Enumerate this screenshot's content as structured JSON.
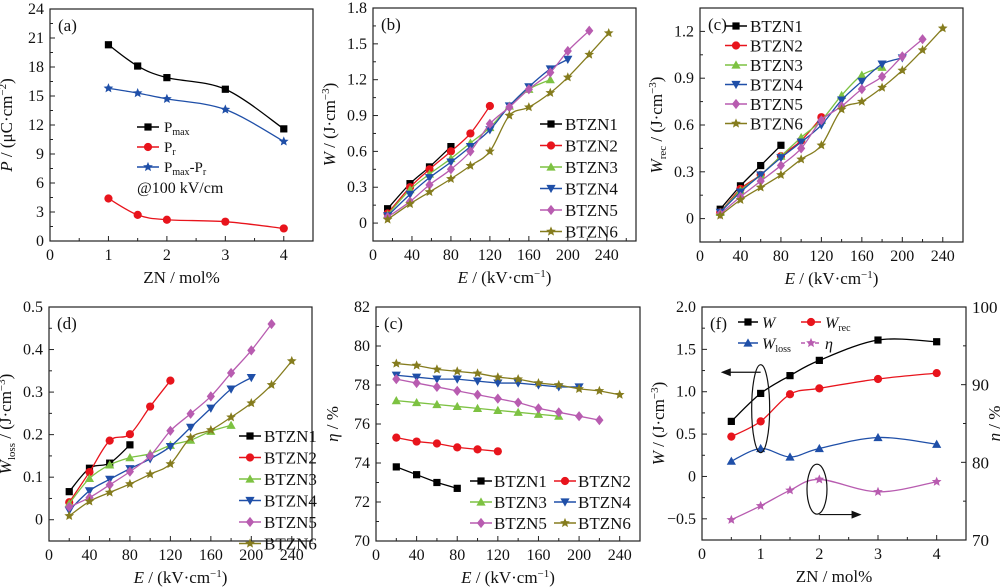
{
  "chart_data": [
    {
      "id": "a",
      "panel_label": "(a)",
      "type": "line",
      "xlabel": "ZN / mol%",
      "ylabel": "P / (μC·cm⁻²)",
      "ylabel_italic": "P",
      "ylabel_rest": " / (μC·cm",
      "ylabel_sup": "−2",
      "ylabel_end": ")",
      "xlim": [
        0,
        4.5
      ],
      "ylim": [
        0,
        24
      ],
      "xticks": [
        0,
        1,
        2,
        3,
        4
      ],
      "yticks": [
        0,
        3,
        6,
        9,
        12,
        15,
        18,
        21,
        24
      ],
      "annotation": "@100 kV/cm",
      "legend_position": "center-left",
      "series": [
        {
          "name": "Pmax",
          "label_main": "P",
          "label_sub": "max",
          "label_tail": "",
          "color": "#000000",
          "marker": "square",
          "x": [
            1,
            1.5,
            2,
            3,
            4
          ],
          "y": [
            20.3,
            18.1,
            16.9,
            15.7,
            11.6
          ]
        },
        {
          "name": "Pr",
          "label_main": "P",
          "label_sub": "r",
          "label_tail": "",
          "color": "#e8141c",
          "marker": "circle",
          "x": [
            1,
            1.5,
            2,
            3,
            4
          ],
          "y": [
            4.4,
            2.7,
            2.2,
            2.0,
            1.3
          ]
        },
        {
          "name": "Pmax-Pr",
          "label_main": "P",
          "label_sub": "max",
          "label_tail": "-P",
          "label_tail_sub": "r",
          "color": "#1f4fa8",
          "marker": "star",
          "x": [
            1,
            1.5,
            2,
            3,
            4
          ],
          "y": [
            15.8,
            15.3,
            14.7,
            13.6,
            10.3
          ]
        }
      ]
    },
    {
      "id": "b",
      "panel_label": "(b)",
      "type": "line",
      "xlabel": "E / (kV·cm⁻¹)",
      "ylabel": "W / (J·cm⁻³)",
      "xlim": [
        0,
        270
      ],
      "ylim": [
        -0.15,
        1.8
      ],
      "xticks": [
        0,
        40,
        80,
        120,
        160,
        200,
        240
      ],
      "yticks": [
        0,
        0.3,
        0.6,
        0.9,
        1.2,
        1.5,
        1.8
      ],
      "legend_position": "right",
      "series": [
        {
          "name": "BTZN1",
          "color": "#000000",
          "marker": "square",
          "x": [
            15,
            38,
            58,
            80
          ],
          "y": [
            0.12,
            0.33,
            0.47,
            0.64
          ]
        },
        {
          "name": "BTZN2",
          "color": "#e8141c",
          "marker": "circle",
          "x": [
            15,
            38,
            58,
            80,
            100,
            120
          ],
          "y": [
            0.08,
            0.3,
            0.45,
            0.6,
            0.75,
            0.98
          ]
        },
        {
          "name": "BTZN3",
          "color": "#7dc242",
          "marker": "triangle-up",
          "x": [
            15,
            38,
            58,
            80,
            100,
            120,
            140,
            160,
            182
          ],
          "y": [
            0.07,
            0.28,
            0.41,
            0.54,
            0.67,
            0.8,
            0.98,
            1.12,
            1.2
          ]
        },
        {
          "name": "BTZN4",
          "color": "#1f4fa8",
          "marker": "triangle-down",
          "x": [
            15,
            38,
            58,
            80,
            100,
            120,
            140,
            160,
            182,
            200
          ],
          "y": [
            0.06,
            0.24,
            0.38,
            0.51,
            0.64,
            0.78,
            0.98,
            1.14,
            1.29,
            1.37
          ]
        },
        {
          "name": "BTZN5",
          "color": "#b85cb0",
          "marker": "diamond",
          "x": [
            15,
            38,
            58,
            80,
            100,
            120,
            140,
            160,
            182,
            200,
            222
          ],
          "y": [
            0.05,
            0.18,
            0.32,
            0.45,
            0.6,
            0.83,
            0.97,
            1.12,
            1.26,
            1.44,
            1.61
          ]
        },
        {
          "name": "BTZN6",
          "color": "#857c1e",
          "marker": "star",
          "x": [
            15,
            38,
            58,
            80,
            100,
            120,
            140,
            160,
            182,
            200,
            222,
            242
          ],
          "y": [
            0.03,
            0.16,
            0.26,
            0.37,
            0.48,
            0.6,
            0.9,
            0.97,
            1.09,
            1.22,
            1.41,
            1.59
          ]
        }
      ]
    },
    {
      "id": "c",
      "panel_label": "(c)",
      "type": "line",
      "xlabel": "E / (kV·cm⁻¹)",
      "ylabel": "Wrec / (J·cm⁻³)",
      "xlim": [
        0,
        260
      ],
      "ylim": [
        -0.15,
        1.35
      ],
      "xticks": [
        0,
        40,
        80,
        120,
        160,
        200,
        240
      ],
      "yticks": [
        0,
        0.3,
        0.6,
        0.9,
        1.2
      ],
      "legend_position": "top-left",
      "series": [
        {
          "name": "BTZN1",
          "color": "#000000",
          "marker": "square",
          "x": [
            20,
            40,
            60,
            80
          ],
          "y": [
            0.06,
            0.21,
            0.34,
            0.47
          ]
        },
        {
          "name": "BTZN2",
          "color": "#e8141c",
          "marker": "circle",
          "x": [
            20,
            40,
            60,
            80,
            100,
            120
          ],
          "y": [
            0.04,
            0.19,
            0.28,
            0.4,
            0.5,
            0.65
          ]
        },
        {
          "name": "BTZN3",
          "color": "#7dc242",
          "marker": "triangle-up",
          "x": [
            20,
            40,
            60,
            80,
            100,
            120,
            140,
            160,
            180
          ],
          "y": [
            0.04,
            0.18,
            0.28,
            0.4,
            0.52,
            0.63,
            0.79,
            0.92,
            0.97
          ]
        },
        {
          "name": "BTZN4",
          "color": "#1f4fa8",
          "marker": "triangle-down",
          "x": [
            20,
            40,
            60,
            80,
            100,
            120,
            140,
            160,
            180,
            200
          ],
          "y": [
            0.04,
            0.17,
            0.28,
            0.39,
            0.49,
            0.6,
            0.76,
            0.88,
            0.99,
            1.03
          ]
        },
        {
          "name": "BTZN5",
          "color": "#b85cb0",
          "marker": "diamond",
          "x": [
            20,
            40,
            60,
            80,
            100,
            120,
            140,
            160,
            180,
            200,
            220
          ],
          "y": [
            0.03,
            0.14,
            0.24,
            0.34,
            0.45,
            0.63,
            0.72,
            0.83,
            0.91,
            1.04,
            1.15
          ]
        },
        {
          "name": "BTZN6",
          "color": "#857c1e",
          "marker": "star",
          "x": [
            20,
            40,
            60,
            80,
            100,
            120,
            140,
            160,
            180,
            200,
            220,
            240
          ],
          "y": [
            0.02,
            0.12,
            0.2,
            0.28,
            0.38,
            0.47,
            0.7,
            0.75,
            0.84,
            0.95,
            1.08,
            1.22
          ]
        }
      ]
    },
    {
      "id": "d",
      "panel_label": "(d)",
      "type": "line",
      "xlabel": "E / (kV·cm⁻¹)",
      "ylabel": "Wloss / (J·cm⁻³)",
      "xlim": [
        0,
        260
      ],
      "ylim": [
        -0.05,
        0.5
      ],
      "xticks": [
        0,
        40,
        80,
        120,
        160,
        200,
        240
      ],
      "yticks": [
        0,
        0.1,
        0.2,
        0.3,
        0.4,
        0.5
      ],
      "legend_position": "right",
      "series": [
        {
          "name": "BTZN1",
          "color": "#000000",
          "marker": "square",
          "x": [
            20,
            40,
            60,
            80
          ],
          "y": [
            0.066,
            0.121,
            0.133,
            0.176
          ]
        },
        {
          "name": "BTZN2",
          "color": "#e8141c",
          "marker": "circle",
          "x": [
            20,
            40,
            60,
            80,
            100,
            120
          ],
          "y": [
            0.041,
            0.112,
            0.186,
            0.201,
            0.266,
            0.327
          ]
        },
        {
          "name": "BTZN3",
          "color": "#7dc242",
          "marker": "triangle-up",
          "x": [
            20,
            40,
            60,
            80,
            100,
            120,
            140,
            160,
            180
          ],
          "y": [
            0.038,
            0.097,
            0.129,
            0.146,
            0.155,
            0.175,
            0.187,
            0.208,
            0.222
          ]
        },
        {
          "name": "BTZN4",
          "color": "#1f4fa8",
          "marker": "triangle-down",
          "x": [
            20,
            40,
            60,
            80,
            100,
            120,
            140,
            160,
            180,
            200
          ],
          "y": [
            0.022,
            0.068,
            0.095,
            0.12,
            0.143,
            0.172,
            0.217,
            0.262,
            0.307,
            0.334
          ]
        },
        {
          "name": "BTZN5",
          "color": "#b85cb0",
          "marker": "diamond",
          "x": [
            20,
            40,
            60,
            80,
            100,
            120,
            140,
            160,
            180,
            200,
            220
          ],
          "y": [
            0.03,
            0.052,
            0.082,
            0.113,
            0.15,
            0.209,
            0.249,
            0.29,
            0.345,
            0.398,
            0.46
          ]
        },
        {
          "name": "BTZN6",
          "color": "#857c1e",
          "marker": "star",
          "x": [
            20,
            40,
            60,
            80,
            100,
            120,
            140,
            160,
            180,
            200,
            220,
            240
          ],
          "y": [
            0.009,
            0.043,
            0.064,
            0.084,
            0.107,
            0.131,
            0.193,
            0.211,
            0.241,
            0.274,
            0.317,
            0.373
          ]
        }
      ]
    },
    {
      "id": "e",
      "panel_label": "(c)",
      "type": "line",
      "xlabel": "E / (kV·cm⁻¹)",
      "ylabel": "η / %",
      "xlim": [
        0,
        260
      ],
      "ylim": [
        70,
        82
      ],
      "xticks": [
        0,
        40,
        80,
        120,
        160,
        200,
        240
      ],
      "yticks": [
        70,
        72,
        74,
        76,
        78,
        80,
        82
      ],
      "legend_position": "bottom-right",
      "legend_columns": 2,
      "series": [
        {
          "name": "BTZN1",
          "color": "#000000",
          "marker": "square",
          "x": [
            20,
            40,
            60,
            80
          ],
          "y": [
            73.8,
            73.4,
            73.0,
            72.7
          ]
        },
        {
          "name": "BTZN2",
          "color": "#e8141c",
          "marker": "circle",
          "x": [
            20,
            40,
            60,
            80,
            100,
            120
          ],
          "y": [
            75.3,
            75.1,
            75.0,
            74.8,
            74.7,
            74.6
          ]
        },
        {
          "name": "BTZN3",
          "color": "#7dc242",
          "marker": "triangle-up",
          "x": [
            20,
            40,
            60,
            80,
            100,
            120,
            140,
            160,
            180
          ],
          "y": [
            77.2,
            77.1,
            77.0,
            76.9,
            76.8,
            76.7,
            76.6,
            76.5,
            76.4
          ]
        },
        {
          "name": "BTZN4",
          "color": "#1f4fa8",
          "marker": "triangle-down",
          "x": [
            20,
            40,
            60,
            80,
            100,
            120,
            140,
            160,
            180,
            200
          ],
          "y": [
            78.5,
            78.4,
            78.3,
            78.3,
            78.2,
            78.1,
            78.1,
            78.0,
            77.9,
            77.9
          ]
        },
        {
          "name": "BTZN5",
          "color": "#b85cb0",
          "marker": "diamond",
          "x": [
            20,
            40,
            60,
            80,
            100,
            120,
            140,
            160,
            180,
            200,
            220
          ],
          "y": [
            78.3,
            78.1,
            77.9,
            77.7,
            77.5,
            77.3,
            77.1,
            76.8,
            76.6,
            76.4,
            76.2
          ]
        },
        {
          "name": "BTZN6",
          "color": "#857c1e",
          "marker": "star",
          "x": [
            20,
            40,
            60,
            80,
            100,
            120,
            140,
            160,
            180,
            200,
            220,
            240
          ],
          "y": [
            79.1,
            79.0,
            78.8,
            78.7,
            78.6,
            78.4,
            78.3,
            78.1,
            78.0,
            77.8,
            77.7,
            77.5
          ]
        }
      ]
    },
    {
      "id": "f",
      "panel_label": "(f)",
      "type": "line",
      "xlabel": "ZN / mol%",
      "ylabel": "W / (J·cm⁻³)",
      "y2label": "η / %",
      "xlim": [
        0,
        4.5
      ],
      "ylim": [
        -0.75,
        2.0
      ],
      "y2lim": [
        70,
        100
      ],
      "xticks": [
        0,
        1,
        2,
        3,
        4
      ],
      "yticks": [
        -0.5,
        0,
        0.5,
        1.0,
        1.5,
        2.0
      ],
      "ytick_labels": [
        "−0.5",
        "0",
        "0.5",
        "1.0",
        "1.5",
        "2.0"
      ],
      "y2ticks": [
        70,
        80,
        90,
        100
      ],
      "legend_position": "top-left",
      "legend_columns": 2,
      "series": [
        {
          "name": "W",
          "label_main": "W",
          "label_sub": "",
          "color": "#000000",
          "marker": "square",
          "axis": "left",
          "x": [
            0.5,
            1,
            1.5,
            2,
            3,
            4
          ],
          "y": [
            0.65,
            0.98,
            1.19,
            1.37,
            1.61,
            1.59
          ]
        },
        {
          "name": "Wrec",
          "label_main": "W",
          "label_sub": "rec",
          "color": "#e8141c",
          "marker": "circle",
          "axis": "left",
          "x": [
            0.5,
            1,
            1.5,
            2,
            3,
            4
          ],
          "y": [
            0.47,
            0.65,
            0.97,
            1.04,
            1.15,
            1.22
          ]
        },
        {
          "name": "Wloss",
          "label_main": "W",
          "label_sub": "loss",
          "color": "#1f4fa8",
          "marker": "triangle-up",
          "axis": "left",
          "x": [
            0.5,
            1,
            1.5,
            2,
            3,
            4
          ],
          "y": [
            0.18,
            0.33,
            0.23,
            0.33,
            0.46,
            0.38
          ]
        },
        {
          "name": "η",
          "label_main": "η",
          "label_sub": "",
          "color": "#b85cb0",
          "marker": "star",
          "axis": "right",
          "dashed_legend": true,
          "x": [
            0.5,
            1,
            1.5,
            2,
            3,
            4
          ],
          "y": [
            72.6,
            74.4,
            76.4,
            77.8,
            76.2,
            77.5
          ]
        }
      ]
    }
  ]
}
